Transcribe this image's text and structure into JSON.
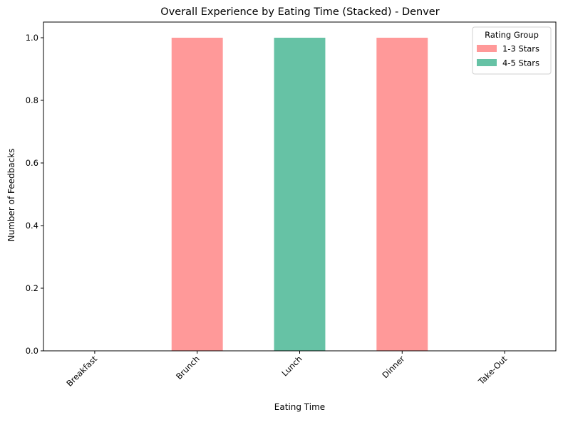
{
  "chart_data": {
    "type": "bar",
    "stacked": true,
    "title": "Overall Experience by Eating Time (Stacked) - Denver",
    "xlabel": "Eating Time",
    "ylabel": "Number of Feedbacks",
    "categories": [
      "Breakfast",
      "Brunch",
      "Lunch",
      "Dinner",
      "Take-Out"
    ],
    "series": [
      {
        "name": "1-3 Stars",
        "color": "#ff9999",
        "values": [
          0,
          1,
          0,
          1,
          0
        ]
      },
      {
        "name": "4-5 Stars",
        "color": "#66c2a5",
        "values": [
          0,
          0,
          1,
          0,
          0
        ]
      }
    ],
    "ylim": [
      0,
      1.05
    ],
    "yticks": [
      "0.0",
      "0.2",
      "0.4",
      "0.6",
      "0.8",
      "1.0"
    ],
    "legend": {
      "title": "Rating Group",
      "placement": "top-right"
    },
    "grid": false
  }
}
